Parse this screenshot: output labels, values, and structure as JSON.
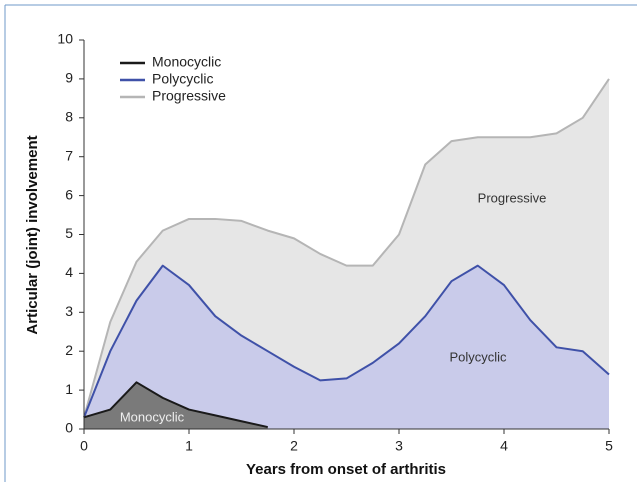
{
  "chart_data": {
    "type": "area",
    "xlabel": "Years from onset of arthritis",
    "ylabel": "Articular (joint) involvement",
    "x": [
      0,
      0.25,
      0.5,
      0.75,
      1,
      1.25,
      1.5,
      1.75,
      2,
      2.25,
      2.5,
      2.75,
      3,
      3.25,
      3.5,
      3.75,
      4,
      4.25,
      4.5,
      4.75,
      5
    ],
    "series": [
      {
        "name": "Monocyclic",
        "color": "#1a1a1a",
        "fill": "#7a7a7a",
        "values": [
          0.3,
          0.5,
          1.2,
          0.8,
          0.5,
          0.35,
          0.2,
          0.05,
          null,
          null,
          null,
          null,
          null,
          null,
          null,
          null,
          null,
          null,
          null,
          null,
          null
        ]
      },
      {
        "name": "Polycyclic",
        "color": "#3f51a8",
        "fill": "#c9cbea",
        "values": [
          0.3,
          2.0,
          3.3,
          4.2,
          3.7,
          2.9,
          2.4,
          2.0,
          1.6,
          1.25,
          1.3,
          1.7,
          2.2,
          2.9,
          3.8,
          4.2,
          3.7,
          2.8,
          2.1,
          2.0,
          1.4
        ]
      },
      {
        "name": "Progressive",
        "color": "#b5b5b5",
        "fill": "#e6e6e6",
        "values": [
          0.3,
          2.75,
          4.3,
          5.1,
          5.4,
          5.4,
          5.35,
          5.1,
          4.9,
          4.5,
          4.2,
          4.2,
          5.0,
          6.8,
          7.4,
          7.5,
          7.5,
          7.5,
          7.6,
          8.0,
          9.0
        ]
      }
    ],
    "annotations": [
      "Progressive",
      "Polycyclic",
      "Monocyclic"
    ],
    "xlim": [
      0,
      5
    ],
    "xticks": [
      0,
      1,
      2,
      3,
      4,
      5
    ],
    "ylim": [
      0,
      10
    ],
    "yticks": [
      0,
      1,
      2,
      3,
      4,
      5,
      6,
      7,
      8,
      9,
      10
    ],
    "legend": "upper left"
  }
}
